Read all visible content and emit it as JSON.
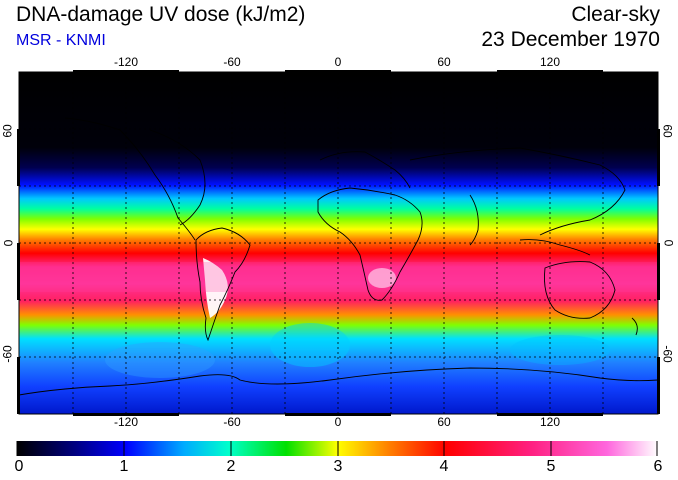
{
  "header": {
    "title": "DNA-damage UV dose (kJ/m2)",
    "source": "MSR - KNMI",
    "condition": "Clear-sky",
    "date": "23 December 1970"
  },
  "map": {
    "lon_ticks": [
      "-120",
      "-60",
      "0",
      "60",
      "120"
    ],
    "lat_ticks_left": [
      "60",
      "0",
      "-60"
    ],
    "lat_ticks_right": [
      "60",
      "0",
      "-60"
    ],
    "lon_range": [
      -180,
      180
    ],
    "lat_range": [
      -90,
      90
    ],
    "gridlines": "dotted",
    "land_outlines": "black coastlines"
  },
  "colorbar": {
    "labels": [
      "0",
      "1",
      "2",
      "3",
      "4",
      "5",
      "6"
    ],
    "min": 0,
    "max": 6,
    "colors": [
      "#000000",
      "#000080",
      "#0000ff",
      "#00c8ff",
      "#00ffaa",
      "#00e000",
      "#ffff00",
      "#ff7f00",
      "#ff0000",
      "#ff1f7f",
      "#ff55cc",
      "#ffffff"
    ]
  }
}
